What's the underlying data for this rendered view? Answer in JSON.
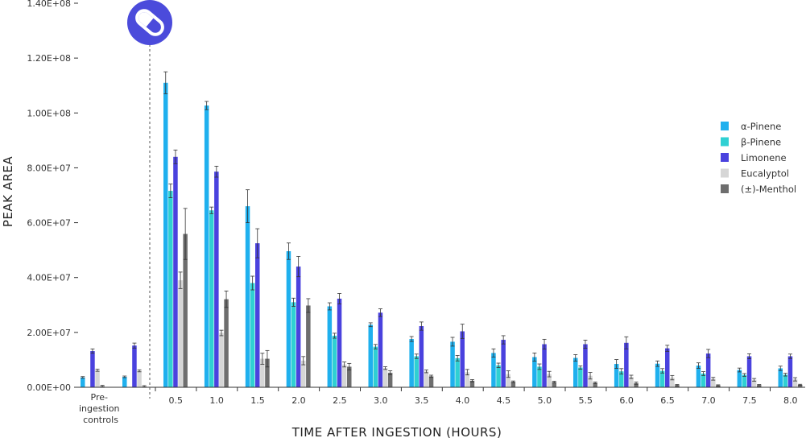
{
  "chart_data": {
    "type": "bar",
    "title": "",
    "xlabel": "TIME AFTER INGESTION (HOURS)",
    "ylabel": "PEAK AREA",
    "ylim": [
      0,
      140000000
    ],
    "yticks": [
      "0.00E+00",
      "2.00E+07",
      "4.00E+07",
      "6.00E+07",
      "8.00E+07",
      "1.00E+08",
      "1.20E+08",
      "1.40E+08"
    ],
    "grid": false,
    "legend_position": "right",
    "control_label_lines": [
      "Pre-",
      "ingestion",
      "controls"
    ],
    "icon": "capsule-icon",
    "colors": {
      "alpha_pinene": "#1fb0ee",
      "beta_pinene": "#2fd0d3",
      "limonene": "#4a42de",
      "eucalyptol": "#d6d6d6",
      "menthol": "#6e6e6e",
      "icon_bg": "#4b4bdb",
      "axis": "#333333"
    },
    "control_groups": 2,
    "categories": [
      "0.5",
      "1.0",
      "1.5",
      "2.0",
      "2.5",
      "3.0",
      "3.5",
      "4.0",
      "4.5",
      "5.0",
      "5.5",
      "6.0",
      "6.5",
      "7.0",
      "7.5",
      "8.0"
    ],
    "series": [
      {
        "name": "α-Pinene",
        "color_key": "alpha_pinene",
        "controls": [
          3600000,
          3800000
        ],
        "values": [
          111000000,
          102700000,
          66000000,
          49600000,
          29500000,
          22800000,
          17600000,
          16600000,
          12500000,
          11000000,
          10700000,
          8500000,
          8600000,
          7900000,
          6300000,
          6900000
        ],
        "errors": [
          4000000,
          1500000,
          6000000,
          3000000,
          1300000,
          700000,
          900000,
          1600000,
          1500000,
          1500000,
          1200000,
          1600000,
          1000000,
          1000000,
          700000,
          800000
        ]
      },
      {
        "name": "β-Pinene",
        "color_key": "beta_pinene",
        "controls": [
          1800000,
          2200000
        ],
        "values": [
          71600000,
          64500000,
          38000000,
          31000000,
          18800000,
          14800000,
          11300000,
          10600000,
          8000000,
          7500000,
          7200000,
          5800000,
          6000000,
          5000000,
          4500000,
          4600000
        ],
        "errors": [
          2500000,
          1200000,
          2500000,
          1500000,
          900000,
          800000,
          800000,
          1000000,
          800000,
          1000000,
          600000,
          1000000,
          800000,
          700000,
          500000,
          500000
        ],
        "show_control": [
          false,
          false
        ]
      },
      {
        "name": "Limonene",
        "color_key": "limonene",
        "controls": [
          13200000,
          15200000
        ],
        "values": [
          84000000,
          78600000,
          52500000,
          44000000,
          32300000,
          27200000,
          22300000,
          20400000,
          17300000,
          15700000,
          15700000,
          16200000,
          14200000,
          12300000,
          11300000,
          11300000
        ],
        "errors": [
          2500000,
          2000000,
          5300000,
          3700000,
          1900000,
          1400000,
          1500000,
          2600000,
          1500000,
          1800000,
          1500000,
          2200000,
          1100000,
          1500000,
          900000,
          800000
        ]
      },
      {
        "name": "Eucalyptol",
        "color_key": "eucalyptol",
        "controls": [
          6200000,
          6000000
        ],
        "values": [
          39000000,
          19800000,
          10400000,
          9700000,
          8300000,
          7000000,
          5800000,
          5500000,
          4800000,
          4800000,
          4200000,
          3800000,
          3500000,
          3100000,
          2700000,
          2900000
        ],
        "errors": [
          3000000,
          1000000,
          2000000,
          1500000,
          900000,
          500000,
          500000,
          1000000,
          1200000,
          1000000,
          1200000,
          600000,
          800000,
          500000,
          500000,
          600000
        ]
      },
      {
        "name": "(±)-Menthol",
        "color_key": "menthol",
        "controls": [
          400000,
          300000
        ],
        "values": [
          55900000,
          32100000,
          10400000,
          29800000,
          7500000,
          5300000,
          4000000,
          2400000,
          2000000,
          1900000,
          1600000,
          1500000,
          800000,
          700000,
          800000,
          900000
        ],
        "errors": [
          9300000,
          3000000,
          3000000,
          2500000,
          1200000,
          700000,
          400000,
          400000,
          300000,
          300000,
          300000,
          400000,
          200000,
          200000,
          200000,
          200000
        ]
      }
    ]
  }
}
